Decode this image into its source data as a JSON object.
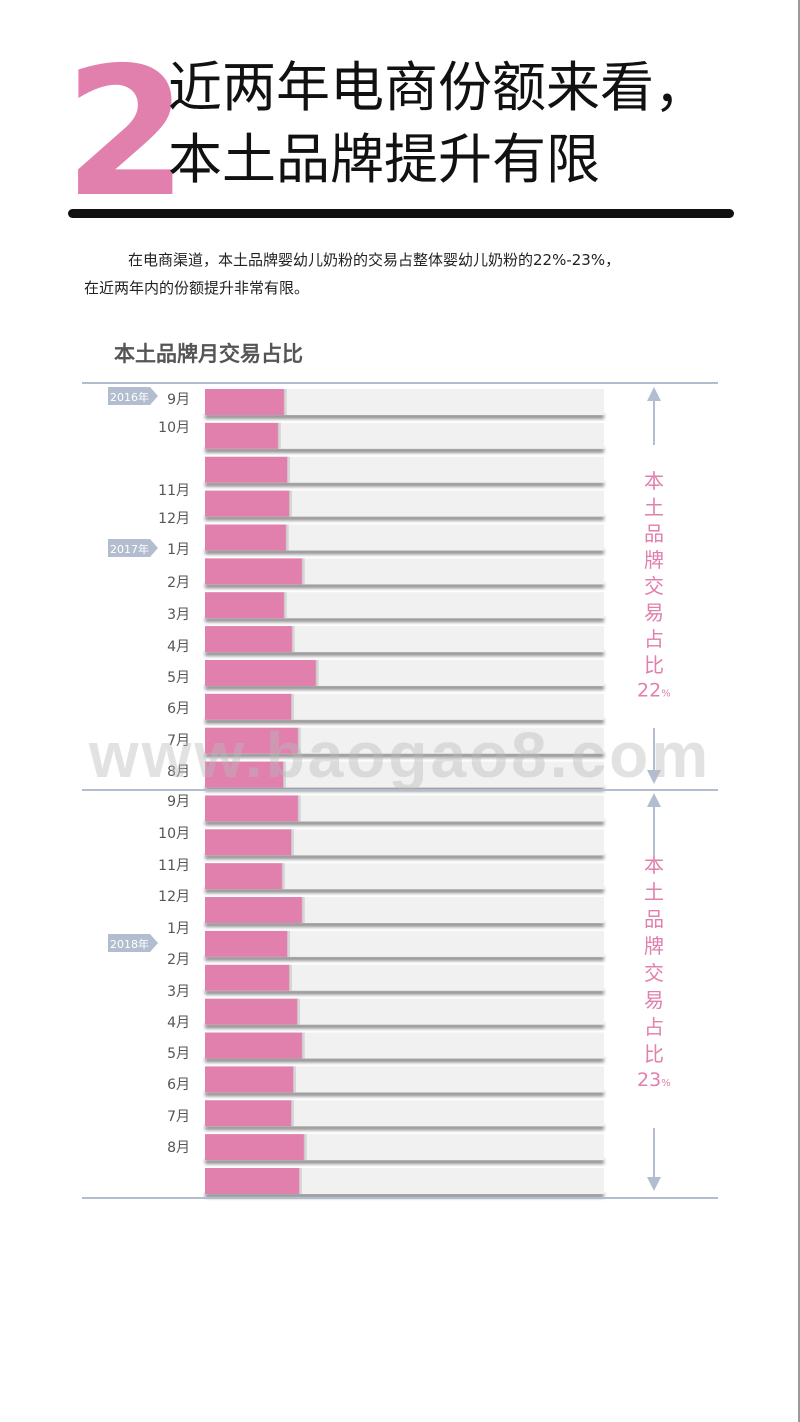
{
  "header": {
    "number": "2",
    "title_line1": "近两年电商份额来看，",
    "title_line2": "本土品牌提升有限"
  },
  "intro": {
    "line1": "在电商渠道，本土品牌婴幼儿奶粉的交易占整体婴幼儿奶粉的22%-23%，",
    "line2": "在近两年内的份额提升非常有限。"
  },
  "watermark": "www.baogao8.com",
  "colors": {
    "accent": "#e17fad",
    "bar_bg": "#f1f1f1",
    "rule": "#b3bdd0",
    "tag": "#b3bdd0",
    "label": "#555555"
  },
  "chart_data": {
    "type": "bar",
    "orientation": "horizontal",
    "title": "本土品牌月交易占比",
    "month_labels": [
      "9月",
      "10月",
      "11月",
      "12月",
      "1月",
      "2月",
      "3月",
      "4月",
      "5月",
      "6月",
      "7月",
      "8月",
      "9月",
      "10月",
      "11月",
      "12月",
      "1月",
      "2月",
      "3月",
      "4月",
      "5月",
      "6月",
      "7月",
      "8月"
    ],
    "year_tags": [
      "2016年",
      "2017年",
      "2018年"
    ],
    "values": [
      20.0,
      18.5,
      20.8,
      21.3,
      20.5,
      24.5,
      20.0,
      22.0,
      28.0,
      21.8,
      23.5,
      19.8,
      23.5,
      21.8,
      19.5,
      24.5,
      20.8,
      21.3,
      23.3,
      24.5,
      22.3,
      21.8,
      25.0,
      23.8
    ],
    "xlim": [
      0,
      100
    ],
    "annotations": [
      {
        "text": "本土品牌交易占比",
        "value": "22",
        "unit": "%"
      },
      {
        "text": "本土品牌交易占比",
        "value": "23",
        "unit": "%"
      }
    ]
  }
}
